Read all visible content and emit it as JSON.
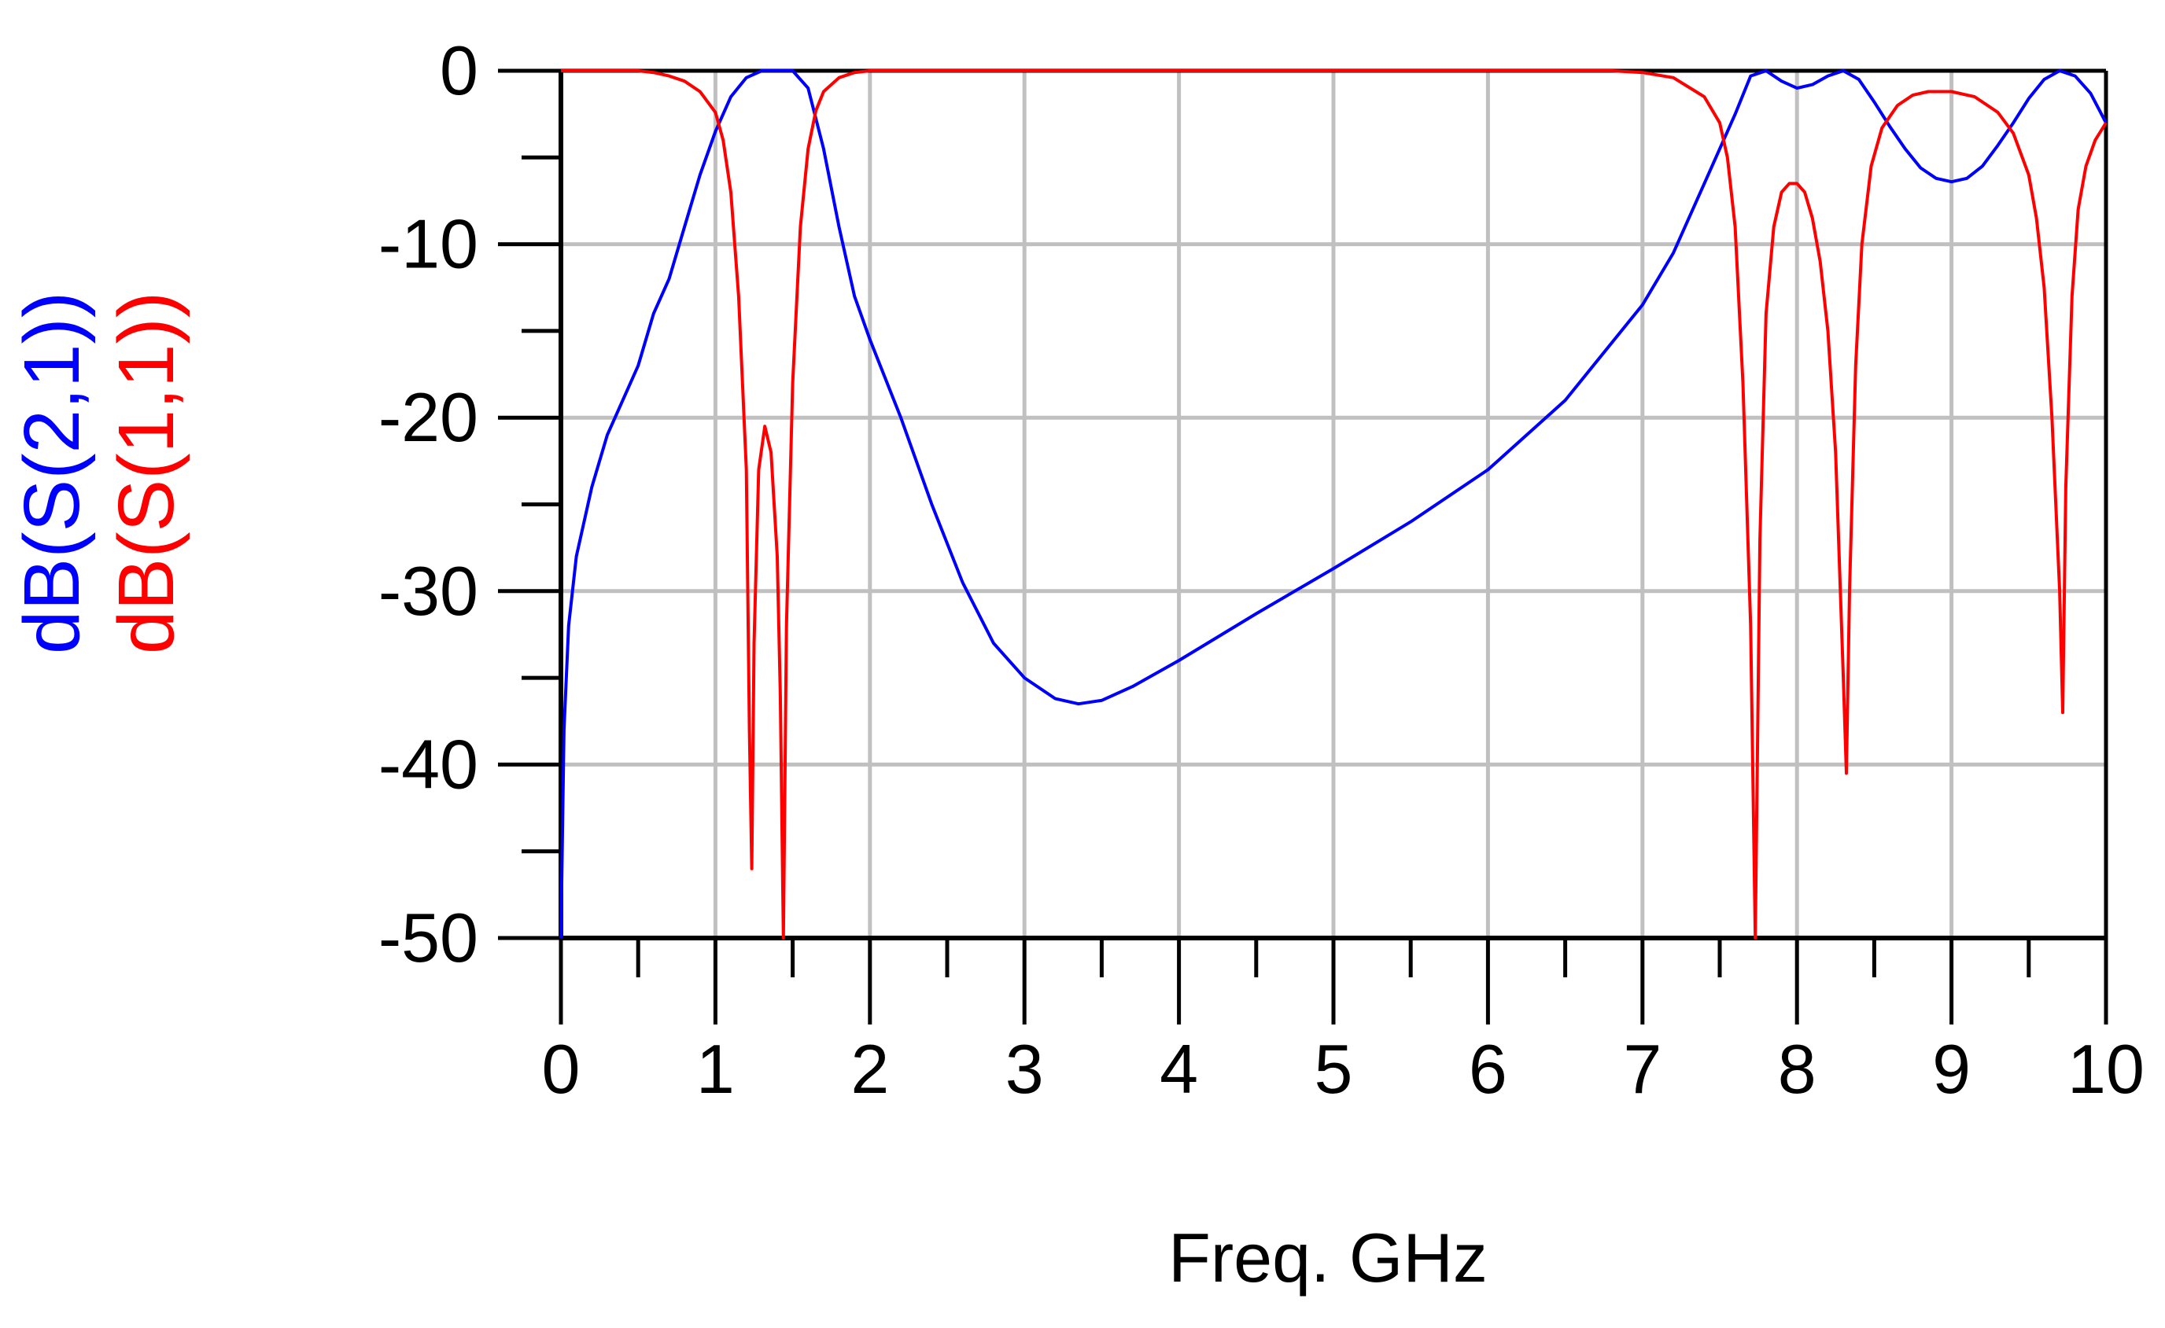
{
  "chart_data": {
    "type": "line",
    "title": "",
    "xlabel": "Freq. GHz",
    "ylabel_parts": [
      {
        "text": "dB(S(2,1))",
        "color": "#0000ff"
      },
      {
        "text": "dB(S(1,1))",
        "color": "#ff0000"
      }
    ],
    "xlim": [
      0,
      10
    ],
    "ylim": [
      -50,
      0
    ],
    "x_ticks": [
      0,
      1,
      2,
      3,
      4,
      5,
      6,
      7,
      8,
      9,
      10
    ],
    "x_tick_labels": [
      "0",
      "1",
      "2",
      "3",
      "4",
      "5",
      "6",
      "7",
      "8",
      "9",
      "10"
    ],
    "y_ticks": [
      0,
      -10,
      -20,
      -30,
      -40,
      -50
    ],
    "y_tick_labels": [
      "0",
      "-10",
      "-20",
      "-30",
      "-40",
      "-50"
    ],
    "y_minor_step": 5,
    "x_minor_step": 0.5,
    "grid": true,
    "series": [
      {
        "name": "dB(S(2,1))",
        "color": "#0000ff",
        "points": [
          [
            0.0,
            -50
          ],
          [
            0.02,
            -38
          ],
          [
            0.05,
            -32
          ],
          [
            0.1,
            -28
          ],
          [
            0.2,
            -24
          ],
          [
            0.3,
            -21
          ],
          [
            0.4,
            -19
          ],
          [
            0.5,
            -17
          ],
          [
            0.6,
            -14
          ],
          [
            0.7,
            -12
          ],
          [
            0.8,
            -9
          ],
          [
            0.9,
            -6
          ],
          [
            1.0,
            -3.5
          ],
          [
            1.1,
            -1.5
          ],
          [
            1.2,
            -0.4
          ],
          [
            1.3,
            0
          ],
          [
            1.4,
            0
          ],
          [
            1.5,
            0
          ],
          [
            1.6,
            -1
          ],
          [
            1.7,
            -4.5
          ],
          [
            1.8,
            -9
          ],
          [
            1.9,
            -13
          ],
          [
            2.0,
            -15.5
          ],
          [
            2.2,
            -20
          ],
          [
            2.4,
            -25
          ],
          [
            2.6,
            -29.5
          ],
          [
            2.8,
            -33
          ],
          [
            3.0,
            -35
          ],
          [
            3.2,
            -36.2
          ],
          [
            3.35,
            -36.5
          ],
          [
            3.5,
            -36.3
          ],
          [
            3.7,
            -35.5
          ],
          [
            4.0,
            -34
          ],
          [
            4.5,
            -31.3
          ],
          [
            5.0,
            -28.7
          ],
          [
            5.5,
            -26
          ],
          [
            6.0,
            -23
          ],
          [
            6.5,
            -19
          ],
          [
            7.0,
            -13.5
          ],
          [
            7.2,
            -10.5
          ],
          [
            7.4,
            -6.5
          ],
          [
            7.6,
            -2.5
          ],
          [
            7.7,
            -0.3
          ],
          [
            7.8,
            0
          ],
          [
            7.9,
            -0.6
          ],
          [
            8.0,
            -1
          ],
          [
            8.1,
            -0.8
          ],
          [
            8.2,
            -0.3
          ],
          [
            8.3,
            0
          ],
          [
            8.4,
            -0.5
          ],
          [
            8.5,
            -1.8
          ],
          [
            8.6,
            -3.2
          ],
          [
            8.7,
            -4.5
          ],
          [
            8.8,
            -5.6
          ],
          [
            8.9,
            -6.2
          ],
          [
            9.0,
            -6.4
          ],
          [
            9.1,
            -6.2
          ],
          [
            9.2,
            -5.5
          ],
          [
            9.3,
            -4.3
          ],
          [
            9.4,
            -3
          ],
          [
            9.5,
            -1.6
          ],
          [
            9.6,
            -0.5
          ],
          [
            9.7,
            0
          ],
          [
            9.8,
            -0.3
          ],
          [
            9.9,
            -1.3
          ],
          [
            10.0,
            -3
          ]
        ]
      },
      {
        "name": "dB(S(1,1))",
        "color": "#ff0000",
        "points": [
          [
            0.0,
            0
          ],
          [
            0.5,
            0
          ],
          [
            0.6,
            -0.1
          ],
          [
            0.7,
            -0.3
          ],
          [
            0.8,
            -0.6
          ],
          [
            0.9,
            -1.2
          ],
          [
            1.0,
            -2.4
          ],
          [
            1.05,
            -4
          ],
          [
            1.1,
            -7
          ],
          [
            1.15,
            -13
          ],
          [
            1.2,
            -23
          ],
          [
            1.22,
            -38
          ],
          [
            1.235,
            -46
          ],
          [
            1.25,
            -33
          ],
          [
            1.28,
            -23
          ],
          [
            1.32,
            -20.5
          ],
          [
            1.36,
            -22
          ],
          [
            1.4,
            -28
          ],
          [
            1.42,
            -36
          ],
          [
            1.44,
            -50
          ],
          [
            1.46,
            -32
          ],
          [
            1.5,
            -18
          ],
          [
            1.55,
            -9
          ],
          [
            1.6,
            -4.5
          ],
          [
            1.65,
            -2.3
          ],
          [
            1.7,
            -1.2
          ],
          [
            1.8,
            -0.4
          ],
          [
            1.9,
            -0.1
          ],
          [
            2.0,
            0
          ],
          [
            6.8,
            0
          ],
          [
            7.0,
            -0.1
          ],
          [
            7.2,
            -0.4
          ],
          [
            7.4,
            -1.5
          ],
          [
            7.5,
            -3
          ],
          [
            7.55,
            -5
          ],
          [
            7.6,
            -9
          ],
          [
            7.65,
            -18
          ],
          [
            7.7,
            -32
          ],
          [
            7.73,
            -50
          ],
          [
            7.76,
            -27
          ],
          [
            7.8,
            -14
          ],
          [
            7.85,
            -9
          ],
          [
            7.9,
            -7
          ],
          [
            7.95,
            -6.5
          ],
          [
            8.0,
            -6.5
          ],
          [
            8.05,
            -7
          ],
          [
            8.1,
            -8.5
          ],
          [
            8.15,
            -11
          ],
          [
            8.2,
            -15
          ],
          [
            8.25,
            -22
          ],
          [
            8.3,
            -35
          ],
          [
            8.32,
            -40.5
          ],
          [
            8.34,
            -30
          ],
          [
            8.38,
            -17
          ],
          [
            8.42,
            -10
          ],
          [
            8.48,
            -5.5
          ],
          [
            8.55,
            -3.3
          ],
          [
            8.65,
            -2
          ],
          [
            8.75,
            -1.4
          ],
          [
            8.85,
            -1.2
          ],
          [
            9.0,
            -1.2
          ],
          [
            9.15,
            -1.5
          ],
          [
            9.3,
            -2.4
          ],
          [
            9.4,
            -3.6
          ],
          [
            9.5,
            -6
          ],
          [
            9.55,
            -8.5
          ],
          [
            9.6,
            -12.5
          ],
          [
            9.65,
            -20
          ],
          [
            9.7,
            -30
          ],
          [
            9.72,
            -37
          ],
          [
            9.74,
            -24
          ],
          [
            9.78,
            -13
          ],
          [
            9.82,
            -8
          ],
          [
            9.87,
            -5.5
          ],
          [
            9.93,
            -4
          ],
          [
            10.0,
            -3
          ]
        ]
      }
    ]
  }
}
